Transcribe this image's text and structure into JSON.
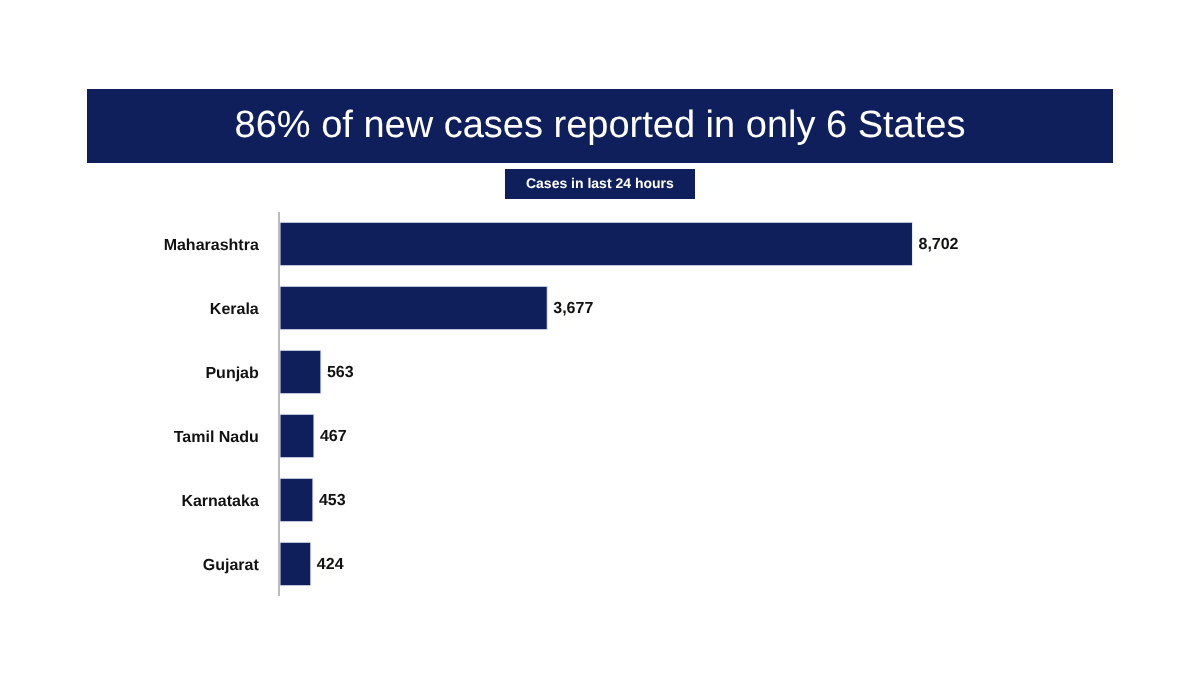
{
  "chart_data": {
    "type": "bar",
    "orientation": "horizontal",
    "title": "86% of new cases reported in only 6 States",
    "subtitle": "Cases in last 24 hours",
    "categories": [
      "Maharashtra",
      "Kerala",
      "Punjab",
      "Tamil Nadu",
      "Karnataka",
      "Gujarat"
    ],
    "values": [
      8702,
      3677,
      563,
      467,
      453,
      424
    ],
    "color": "#0e1f5b",
    "value_labels": [
      "8,702",
      "3,677",
      "563",
      "467",
      "453",
      "424"
    ]
  }
}
